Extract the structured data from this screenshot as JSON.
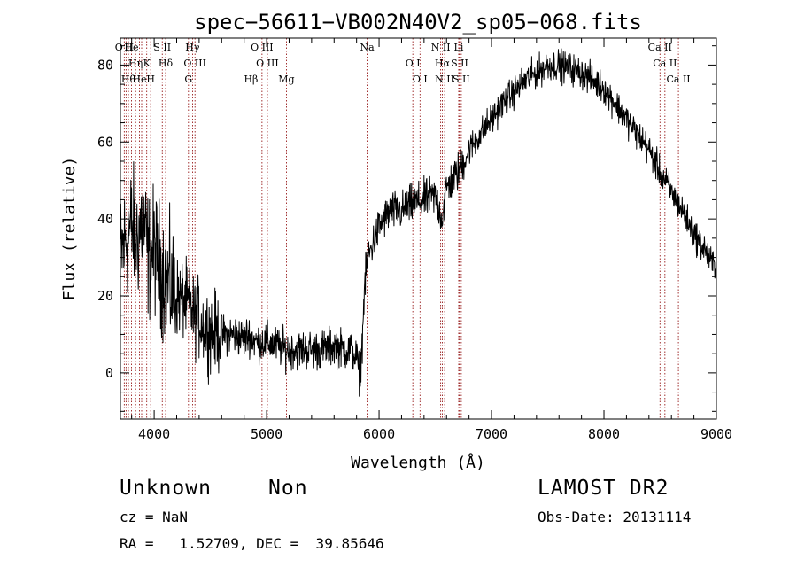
{
  "chart_data": {
    "type": "line",
    "title": "spec−56611−VB002N40V2_sp05−068.fits",
    "xlabel": "Wavelength (Å)",
    "ylabel": "Flux (relative)",
    "xlim": [
      3700,
      9000
    ],
    "ylim": [
      -12,
      87
    ],
    "xticks": [
      4000,
      5000,
      6000,
      7000,
      8000,
      9000
    ],
    "xtick_labels": [
      "4000",
      "5000",
      "6000",
      "7000",
      "8000",
      "9000"
    ],
    "yticks": [
      0,
      20,
      40,
      60,
      80
    ],
    "ytick_labels": [
      "0",
      "20",
      "40",
      "60",
      "80"
    ],
    "grid": false,
    "series": [
      {
        "x": [
          3700,
          3750,
          3800,
          3850,
          3900,
          3950,
          4000,
          4050,
          4100,
          4150,
          4200,
          4250,
          4300,
          4350,
          4400,
          4450,
          4500,
          4600,
          4700,
          4800,
          4850,
          4900,
          5000,
          5100,
          5180,
          5200,
          5300,
          5400,
          5500,
          5600,
          5700,
          5750,
          5800,
          5830,
          5850,
          5870,
          5900,
          5950,
          6000,
          6050,
          6100,
          6200,
          6300,
          6400,
          6500,
          6560,
          6600,
          6700,
          6800,
          6900,
          7000,
          7100,
          7200,
          7300,
          7400,
          7500,
          7600,
          7700,
          7800,
          7900,
          8000,
          8100,
          8200,
          8300,
          8400,
          8500,
          8600,
          8700,
          8800,
          8900,
          8950,
          9000
        ],
        "y": [
          30,
          35,
          38,
          35,
          40,
          30,
          32,
          28,
          25,
          22,
          20,
          19,
          18,
          15,
          14,
          12,
          11,
          10,
          10,
          9,
          10,
          8,
          8,
          7,
          6,
          6,
          6,
          6,
          6,
          7,
          6,
          6,
          4,
          -1,
          8,
          22,
          30,
          34,
          38,
          40,
          42,
          42,
          44,
          45,
          46,
          40,
          48,
          52,
          58,
          62,
          66,
          70,
          73,
          76,
          78,
          80,
          80,
          79,
          78,
          76,
          74,
          70,
          66,
          62,
          58,
          52,
          47,
          42,
          36,
          32,
          29,
          27
        ]
      }
    ],
    "lines": [
      {
        "x": 3734,
        "labels": [
          "O II"
        ]
      },
      {
        "x": 3750,
        "labels": [
          ""
        ]
      },
      {
        "x": 3771,
        "labels": [
          "Hθ"
        ]
      },
      {
        "x": 3798,
        "labels": [
          "He"
        ]
      },
      {
        "x": 3835,
        "labels": [
          "Hη"
        ]
      },
      {
        "x": 3869,
        "labels": [
          "He"
        ]
      },
      {
        "x": 3889,
        "labels": [
          ""
        ]
      },
      {
        "x": 3934,
        "labels": [
          "K"
        ]
      },
      {
        "x": 3969,
        "labels": [
          "H"
        ]
      },
      {
        "x": 4072,
        "labels": [
          "S II"
        ]
      },
      {
        "x": 4102,
        "labels": [
          "Hδ"
        ]
      },
      {
        "x": 4305,
        "labels": [
          "G"
        ]
      },
      {
        "x": 4341,
        "labels": [
          "Hγ"
        ]
      },
      {
        "x": 4363,
        "labels": [
          "O III"
        ]
      },
      {
        "x": 4861,
        "labels": [
          "Hβ"
        ]
      },
      {
        "x": 4959,
        "labels": [
          "O III"
        ]
      },
      {
        "x": 5007,
        "labels": [
          "O III"
        ]
      },
      {
        "x": 5176,
        "labels": [
          "Mg"
        ]
      },
      {
        "x": 5894,
        "labels": [
          "Na"
        ]
      },
      {
        "x": 6300,
        "labels": [
          "O I"
        ]
      },
      {
        "x": 6364,
        "labels": [
          "O I"
        ]
      },
      {
        "x": 6548,
        "labels": [
          "N II"
        ]
      },
      {
        "x": 6563,
        "labels": [
          "Hα"
        ]
      },
      {
        "x": 6583,
        "labels": [
          "N II"
        ]
      },
      {
        "x": 6708,
        "labels": [
          "Li"
        ]
      },
      {
        "x": 6716,
        "labels": [
          "S II"
        ]
      },
      {
        "x": 6731,
        "labels": [
          "S II"
        ]
      },
      {
        "x": 8498,
        "labels": [
          "Ca II"
        ]
      },
      {
        "x": 8542,
        "labels": [
          "Ca II"
        ]
      },
      {
        "x": 8662,
        "labels": [
          "Ca II"
        ]
      }
    ],
    "line_color": "#8b0000"
  },
  "info": {
    "object_class": "Unknown",
    "subclass": "Non",
    "survey": "LAMOST DR2",
    "redshift": "cz = NaN",
    "obs_date": "Obs-Date: 20131114",
    "coords": "RA =   1.52709, DEC =  39.85646"
  }
}
